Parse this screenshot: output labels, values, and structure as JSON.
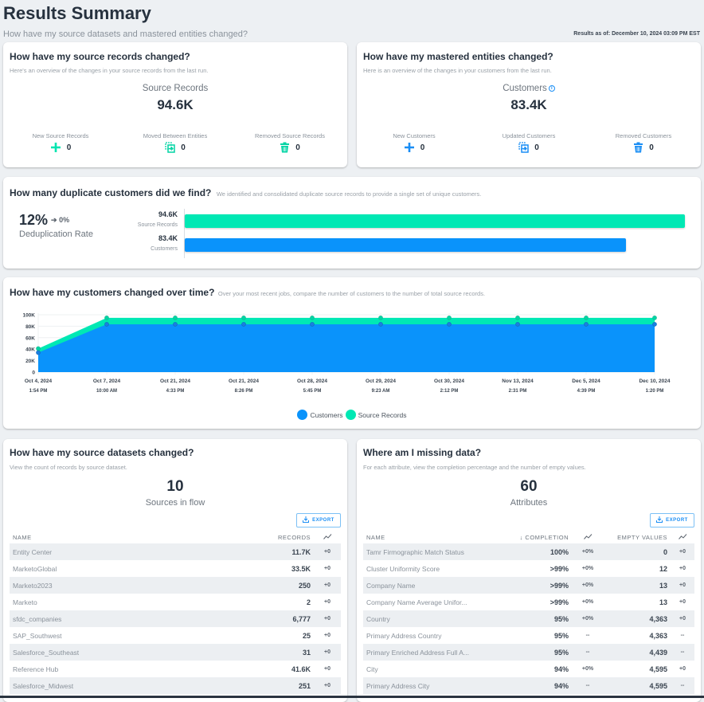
{
  "header": {
    "title": "Results Summary",
    "subtitle": "How have my source datasets and mastered entities changed?",
    "results_as_of": "Results as of: December 10, 2024 03:09 PM EST"
  },
  "source_records_card": {
    "title": "How have my source records changed?",
    "description": "Here's an overview of the changes in your source records from the last run.",
    "metric_label": "Source Records",
    "metric_value": "94.6K",
    "stats": [
      {
        "label": "New Source Records",
        "icon": "plus-icon",
        "value": "0"
      },
      {
        "label": "Moved Between Entities",
        "icon": "move-icon",
        "value": "0"
      },
      {
        "label": "Removed Source Records",
        "icon": "trash-icon",
        "value": "0"
      }
    ],
    "accent": "#00e5b0"
  },
  "entities_card": {
    "title": "How have my mastered entities changed?",
    "description": "Here is an overview of the changes in your customers from the last run.",
    "metric_label": "Customers",
    "metric_value": "83.4K",
    "stats": [
      {
        "label": "New Customers",
        "icon": "plus-icon",
        "value": "0"
      },
      {
        "label": "Updated Customers",
        "icon": "move-icon",
        "value": "0"
      },
      {
        "label": "Removed Customers",
        "icon": "trash-icon",
        "value": "0"
      }
    ],
    "accent": "#1a8ef5"
  },
  "dedup_card": {
    "title": "How many duplicate customers did we find?",
    "description": "We identified and consolidated duplicate source records to provide a single set of unique customers.",
    "rate": "12%",
    "rate_delta": "0%",
    "rate_label": "Deduplication Rate",
    "bars": [
      {
        "value_label": "94.6K",
        "label": "Source Records",
        "value": 94.6,
        "color": "#00e8b4"
      },
      {
        "value_label": "83.4K",
        "label": "Customers",
        "value": 83.4,
        "color": "#0a93fb"
      }
    ]
  },
  "trend_card": {
    "title": "How have my customers changed over time?",
    "description": "Over your most recent jobs, compare the number of customers to the number of total source records."
  },
  "chart_data": {
    "type": "area",
    "title": "How have my customers changed over time?",
    "x": [
      [
        "Oct 4, 2024",
        "1:54 PM"
      ],
      [
        "Oct 7, 2024",
        "10:00 AM"
      ],
      [
        "Oct 21, 2024",
        "4:33 PM"
      ],
      [
        "Oct 21, 2024",
        "8:26 PM"
      ],
      [
        "Oct 28, 2024",
        "5:45 PM"
      ],
      [
        "Oct 29, 2024",
        "9:23 AM"
      ],
      [
        "Oct 30, 2024",
        "2:12 PM"
      ],
      [
        "Nov 13, 2024",
        "2:31 PM"
      ],
      [
        "Dec 5, 2024",
        "4:39 PM"
      ],
      [
        "Dec 10, 2024",
        "1:20 PM"
      ]
    ],
    "series": [
      {
        "name": "Customers",
        "color": "#0a93fb",
        "values": [
          34000,
          83400,
          83400,
          83400,
          83400,
          83400,
          83400,
          83400,
          83400,
          83400
        ]
      },
      {
        "name": "Source Records",
        "color": "#00e8b4",
        "values": [
          41000,
          94600,
          94600,
          94600,
          94600,
          94600,
          94600,
          94600,
          94600,
          94600
        ]
      }
    ],
    "yticks": [
      "0",
      "20K",
      "40K",
      "60K",
      "80K",
      "100K"
    ],
    "ylim": [
      0,
      100000
    ],
    "legend": [
      "Customers",
      "Source Records"
    ],
    "legend_position": "bottom",
    "grid": true
  },
  "datasets_card": {
    "title": "How have my source datasets changed?",
    "description": "View the count of records by source dataset.",
    "count": "10",
    "count_label": "Sources in flow",
    "export_label": "EXPORT",
    "columns": [
      "NAME",
      "RECORDS"
    ],
    "rows": [
      {
        "name": "Entity Center",
        "records": "11.7K",
        "delta": "+0"
      },
      {
        "name": "MarketoGlobal",
        "records": "33.5K",
        "delta": "+0"
      },
      {
        "name": "Marketo2023",
        "records": "250",
        "delta": "+0"
      },
      {
        "name": "Marketo",
        "records": "2",
        "delta": "+0"
      },
      {
        "name": "sfdc_companies",
        "records": "6,777",
        "delta": "+0"
      },
      {
        "name": "SAP_Southwest",
        "records": "25",
        "delta": "+0"
      },
      {
        "name": "Salesforce_Southeast",
        "records": "31",
        "delta": "+0"
      },
      {
        "name": "Reference Hub",
        "records": "41.6K",
        "delta": "+0"
      },
      {
        "name": "Salesforce_Midwest",
        "records": "251",
        "delta": "+0"
      }
    ]
  },
  "missing_card": {
    "title": "Where am I missing data?",
    "description": "For each attribute, view the completion percentage and the number of empty values.",
    "count": "60",
    "count_label": "Attributes",
    "export_label": "EXPORT",
    "columns": [
      "NAME",
      "↓ COMPLETION",
      "EMPTY VALUES"
    ],
    "rows": [
      {
        "name": "Tamr Firmographic Match Status",
        "completion": "100%",
        "completion_delta": "+0%",
        "empty": "0",
        "empty_delta": "+0"
      },
      {
        "name": "Cluster Uniformity Score",
        "completion": ">99%",
        "completion_delta": "+0%",
        "empty": "12",
        "empty_delta": "+0"
      },
      {
        "name": "Company Name",
        "completion": ">99%",
        "completion_delta": "+0%",
        "empty": "13",
        "empty_delta": "+0"
      },
      {
        "name": "Company Name Average Unifor...",
        "completion": ">99%",
        "completion_delta": "+0%",
        "empty": "13",
        "empty_delta": "+0"
      },
      {
        "name": "Country",
        "completion": "95%",
        "completion_delta": "+0%",
        "empty": "4,363",
        "empty_delta": "+0"
      },
      {
        "name": "Primary Address Country",
        "completion": "95%",
        "completion_delta": "--",
        "empty": "4,363",
        "empty_delta": "--"
      },
      {
        "name": "Primary Enriched Address Full A...",
        "completion": "95%",
        "completion_delta": "--",
        "empty": "4,439",
        "empty_delta": "--"
      },
      {
        "name": "City",
        "completion": "94%",
        "completion_delta": "+0%",
        "empty": "4,595",
        "empty_delta": "+0"
      },
      {
        "name": "Primary Address City",
        "completion": "94%",
        "completion_delta": "--",
        "empty": "4,595",
        "empty_delta": "--"
      }
    ]
  }
}
